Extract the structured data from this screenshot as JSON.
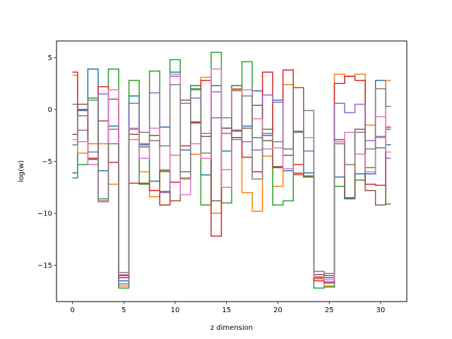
{
  "chart_data": {
    "type": "line",
    "drawstyle": "steps-mid",
    "xlabel": "z dimension",
    "ylabel": "log(w)",
    "xlim": [
      -1.55,
      32.55
    ],
    "ylim": [
      -18.5,
      6.6
    ],
    "xticks": [
      0,
      5,
      10,
      15,
      20,
      25,
      30
    ],
    "yticks": [
      -15,
      -10,
      -5,
      0,
      5
    ],
    "grid": false,
    "x": [
      0,
      1,
      2,
      3,
      4,
      5,
      6,
      7,
      8,
      9,
      10,
      11,
      12,
      13,
      14,
      15,
      16,
      17,
      18,
      19,
      20,
      21,
      22,
      23,
      24,
      25,
      26,
      27,
      28,
      29,
      30,
      31
    ],
    "series": [
      {
        "color": "#1f77b4",
        "values": [
          -6.1,
          -0.1,
          3.9,
          -5.9,
          -1.6,
          -16.5,
          1.3,
          -3.4,
          -6.9,
          -1.7,
          3.6,
          -3.9,
          2.3,
          -6.3,
          2.3,
          -4.0,
          2.3,
          -1.6,
          1.8,
          -2.5,
          0.9,
          -5.9,
          -2.1,
          -6.1,
          -16.3,
          -16.2,
          -6.5,
          -8.6,
          -6.2,
          -6.2,
          2.8,
          -3.4
        ]
      },
      {
        "color": "#ff7f0e",
        "values": [
          3.3,
          -4.2,
          -3.3,
          -3.3,
          -7.2,
          -17.0,
          -2.9,
          -6.0,
          -8.4,
          -6.0,
          -4.4,
          -6.7,
          -4.3,
          3.1,
          -10.0,
          -5.8,
          2.0,
          -8.0,
          -9.8,
          -4.5,
          -7.4,
          2.4,
          -6.3,
          -6.4,
          -16.3,
          -17.0,
          3.4,
          3.2,
          3.4,
          -1.5,
          -2.7,
          2.8
        ]
      },
      {
        "color": "#2ca02c",
        "values": [
          -6.6,
          -5.3,
          1.1,
          -8.6,
          3.9,
          -17.2,
          2.8,
          -7.2,
          3.7,
          -5.9,
          4.8,
          -6.0,
          2.0,
          -9.2,
          5.5,
          -9.0,
          1.9,
          4.6,
          -2.7,
          -1.9,
          -9.2,
          -8.8,
          -2.1,
          -6.4,
          -17.2,
          -17.1,
          -7.4,
          -8.5,
          -6.8,
          -5.6,
          -3.7,
          -9.1
        ]
      },
      {
        "color": "#d62728",
        "values": [
          3.6,
          0.0,
          -4.7,
          2.2,
          -5.1,
          -16.2,
          -7.1,
          -7.1,
          -7.8,
          -9.2,
          -7.0,
          -3.5,
          -1.2,
          2.8,
          -12.2,
          -1.8,
          -2.7,
          -4.6,
          -6.0,
          3.6,
          -5.6,
          3.8,
          -5.3,
          -6.5,
          -16.5,
          -16.7,
          2.5,
          3.2,
          2.8,
          -7.2,
          -7.3,
          -1.7
        ]
      },
      {
        "color": "#9467bd",
        "values": [
          0.5,
          -2.0,
          -4.1,
          1.5,
          -1.9,
          -16.8,
          0.6,
          -3.3,
          1.6,
          -8.0,
          3.2,
          0.6,
          1.1,
          -2.3,
          1.7,
          -2.3,
          -2.1,
          -3.1,
          -3.9,
          1.4,
          0.7,
          -3.8,
          -2.2,
          -4.0,
          -16.2,
          -16.6,
          0.6,
          -0.3,
          0.5,
          -3.0,
          -2.6,
          -4.7
        ]
      },
      {
        "color": "#8c564b",
        "values": [
          -2.4,
          0.5,
          -4.8,
          -1.1,
          1.0,
          -16.0,
          -2.4,
          -3.6,
          -2.5,
          -7.9,
          -8.8,
          0.9,
          -1.3,
          -2.6,
          -8.8,
          -1.8,
          -2.0,
          -1.8,
          0.4,
          -3.0,
          -5.5,
          -4.4,
          2.1,
          -6.5,
          -15.9,
          -16.0,
          -2.9,
          -8.5,
          -1.9,
          -7.8,
          -9.2,
          -1.9
        ]
      },
      {
        "color": "#e377c2",
        "values": [
          -2.9,
          -3.1,
          -5.3,
          -8.9,
          1.9,
          -15.9,
          -1.8,
          -4.7,
          -1.8,
          -5.8,
          3.4,
          -8.2,
          -3.3,
          -4.7,
          3.9,
          -7.5,
          1.8,
          1.9,
          -0.9,
          -3.8,
          -3.7,
          -5.7,
          -6.1,
          -2.7,
          -16.1,
          -16.4,
          -3.1,
          -2.2,
          -4.3,
          -6.0,
          -0.7,
          -4.1
        ]
      },
      {
        "color": "#7f7f7f",
        "values": [
          -3.4,
          -0.6,
          0.9,
          -8.8,
          -3.3,
          -15.7,
          -1.9,
          -2.2,
          -3.0,
          -3.5,
          2.4,
          -6.6,
          1.9,
          -4.2,
          -0.8,
          -0.8,
          -2.9,
          1.3,
          -6.7,
          -2.3,
          -3.1,
          -3.8,
          -6.2,
          -0.1,
          -15.6,
          -15.8,
          -3.3,
          -5.3,
          -2.2,
          -3.8,
          2.0,
          0.3
        ]
      }
    ]
  }
}
